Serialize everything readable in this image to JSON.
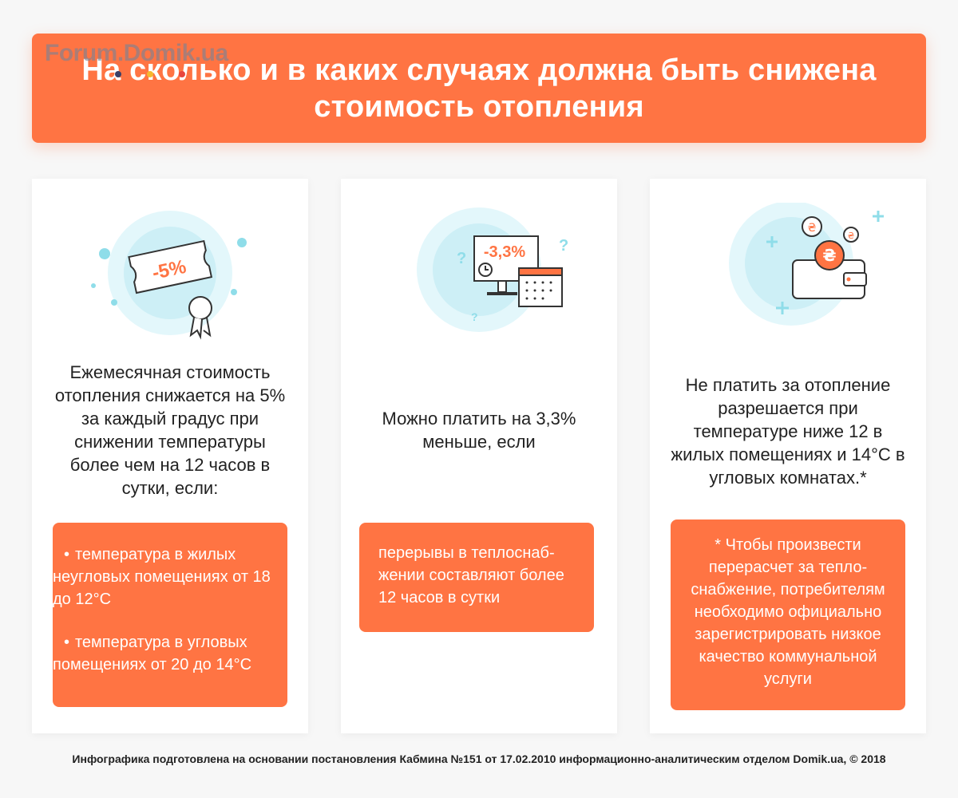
{
  "header": {
    "title": "На сколько и в каких случаях должна быть снижена стоимость отопления",
    "watermark": "Forum.Domik.ua"
  },
  "cards": [
    {
      "icon_name": "discount-ticket-icon",
      "icon_label": "-5%",
      "text": "Ежемесячная стоимость отопления снижается на 5% за каждый градус при снижении температуры более чем на 12 часов в сутки, если:",
      "items": [
        "температура в жилых неугловых помещениях от 18 до 12°C",
        "температура в угловых помещениях от 20 до 14°C"
      ]
    },
    {
      "icon_name": "monitor-calendar-icon",
      "icon_label": "-3,3%",
      "text": "Можно платить на 3,3% меньше, если",
      "box_text": "перерывы в теплоснаб-жении составляют более 12 часов в сутки"
    },
    {
      "icon_name": "wallet-coins-icon",
      "coin_symbol": "₴",
      "text": "Не платить за отопление разрешается при температуре ниже 12 в жилых помещениях и 14°C в угловых комнатах.*",
      "box_text": "* Чтобы произвести перерасчет за тепло-снабжение, потребителям необходимо официально зарегистрировать низкое качество коммунальной услуги"
    }
  ],
  "footer": "Инфографика подготовлена на основании постановления Кабмина №151 от 17.02.2010 информационно-аналитическим отделом Domik.ua, © 2018",
  "colors": {
    "accent": "#ff7443",
    "icon_circle": "#e3f7fb",
    "icon_teal": "#8fdde9",
    "text": "#222222"
  }
}
